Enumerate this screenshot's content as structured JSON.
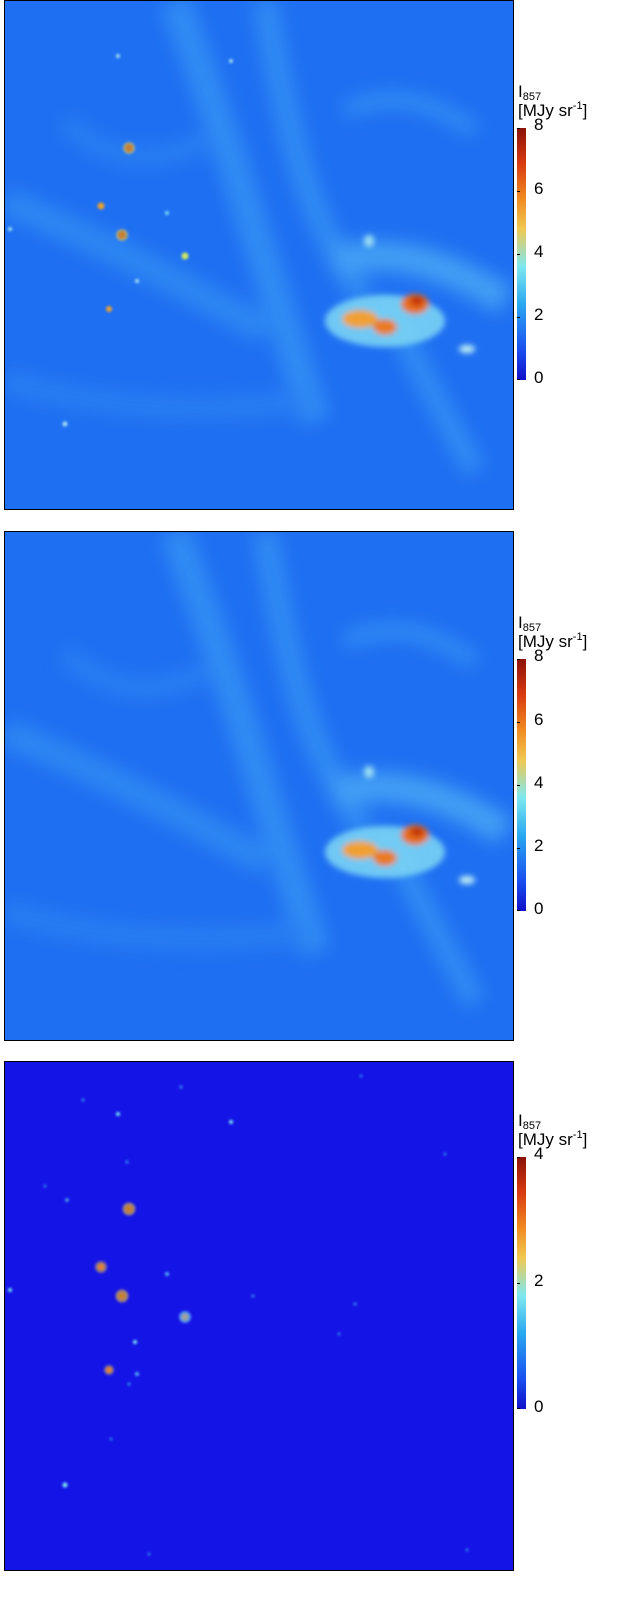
{
  "panels": [
    {
      "map_name": "intensity-map-total",
      "colorbar": {
        "symbol": "I",
        "subscript": "857",
        "unit_text": "[MJy sr",
        "unit_exp": "-1",
        "unit_close": "]",
        "ticks": [
          "8",
          "6",
          "4",
          "2",
          "0"
        ],
        "range": [
          0,
          8
        ]
      },
      "has_diffuse": true,
      "has_points": true
    },
    {
      "map_name": "intensity-map-diffuse",
      "colorbar": {
        "symbol": "I",
        "subscript": "857",
        "unit_text": "[MJy sr",
        "unit_exp": "-1",
        "unit_close": "]",
        "ticks": [
          "8",
          "6",
          "4",
          "2",
          "0"
        ],
        "range": [
          0,
          8
        ]
      },
      "has_diffuse": true,
      "has_points": false
    },
    {
      "map_name": "intensity-map-point-sources",
      "colorbar": {
        "symbol": "I",
        "subscript": "857",
        "unit_text": "[MJy sr",
        "unit_exp": "-1",
        "unit_close": "]",
        "ticks": [
          "4",
          "2",
          "0"
        ],
        "range": [
          0,
          4
        ]
      },
      "has_diffuse": false,
      "has_points": true
    }
  ],
  "colormap": [
    "#1010c8",
    "#1a4ff0",
    "#2aa8f0",
    "#7ee8f0",
    "#f0c850",
    "#f08a20",
    "#d83a10",
    "#8a1208"
  ]
}
